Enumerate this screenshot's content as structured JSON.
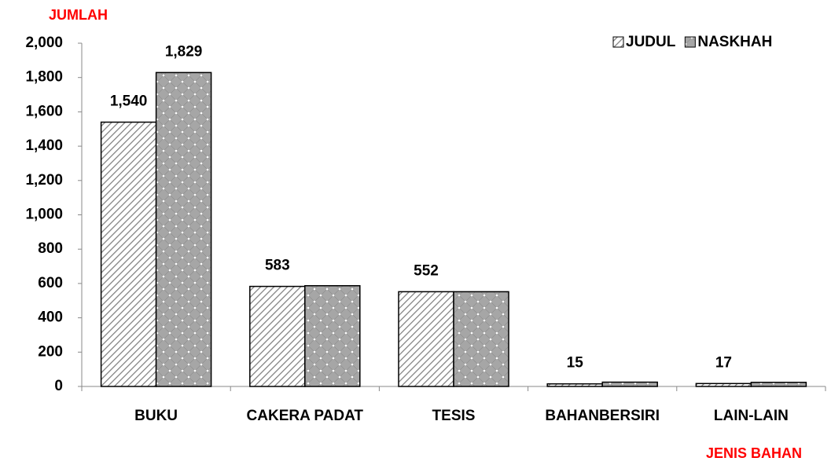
{
  "chart_data": {
    "type": "bar",
    "x_label": "JENIS BAHAN",
    "y_label": "JUMLAH",
    "categories": [
      "BUKU",
      "CAKERA PADAT",
      "TESIS",
      "BAHANBERSIRI",
      "LAIN-LAIN"
    ],
    "series": [
      {
        "name": "JUDUL",
        "color": "#7f7f7f",
        "values": [
          1540,
          583,
          552,
          15,
          17
        ],
        "value_labels": [
          "1,540",
          "583",
          "552",
          "15",
          "17"
        ]
      },
      {
        "name": "NASKHAH",
        "color": "#a6a6a6",
        "values": [
          1829,
          587,
          552,
          25,
          24
        ],
        "value_labels": [
          "1,829",
          null,
          null,
          null,
          null
        ]
      }
    ],
    "ylim": [
      0,
      2000
    ],
    "yticks": [
      0,
      200,
      400,
      600,
      800,
      {
        "value": 1000,
        "label": "1,000"
      },
      {
        "value": 1200,
        "label": "1,200"
      },
      {
        "value": 1400,
        "label": "1,400"
      },
      {
        "value": 1600,
        "label": "1,600"
      },
      {
        "value": 1800,
        "label": "1,800"
      },
      {
        "value": 2000,
        "label": "2,000"
      }
    ],
    "grid": false,
    "legend": "top-right"
  }
}
